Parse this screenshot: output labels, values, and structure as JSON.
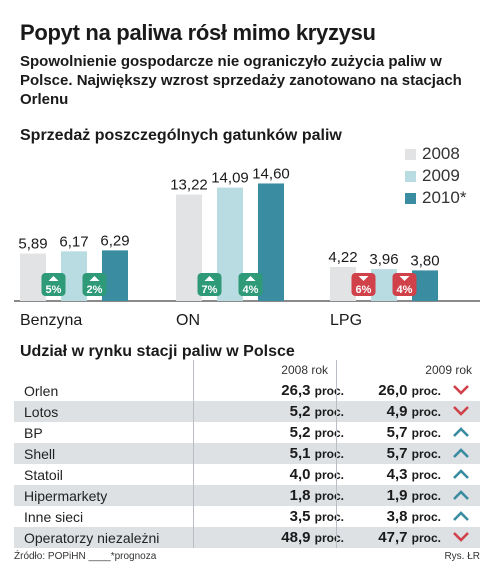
{
  "title": "Popyt na paliwa rósł mimo kryzysu",
  "subtitle": "Spowolnienie gospodarcze nie ograniczyło zużycia paliw w Polsce. Największy wzrost sprzedaży zanotowano na stacjach Orlenu",
  "colors": {
    "y2008": "#e2e3e4",
    "y2009": "#b9dbe2",
    "y2010": "#3a8ca1",
    "up": "#2e9a77",
    "down": "#d0414a",
    "shade": "#dde1e4"
  },
  "chart_data": {
    "type": "bar",
    "title": "Sprzedaż poszczególnych gatunków paliw",
    "categories": [
      "Benzyna",
      "ON",
      "LPG"
    ],
    "series": [
      {
        "name": "2008",
        "values": [
          5.89,
          13.22,
          4.22
        ]
      },
      {
        "name": "2009",
        "values": [
          6.17,
          14.09,
          3.96
        ]
      },
      {
        "name": "2010*",
        "values": [
          6.29,
          14.6,
          3.8
        ]
      }
    ],
    "value_labels": [
      [
        "5,89",
        "6,17",
        "6,29"
      ],
      [
        "13,22",
        "14,09",
        "14,60"
      ],
      [
        "4,22",
        "3,96",
        "3,80"
      ]
    ],
    "changes": [
      [
        {
          "label": "5%",
          "dir": "up"
        },
        {
          "label": "2%",
          "dir": "up"
        }
      ],
      [
        {
          "label": "7%",
          "dir": "up"
        },
        {
          "label": "4%",
          "dir": "up"
        }
      ],
      [
        {
          "label": "6%",
          "dir": "down"
        },
        {
          "label": "4%",
          "dir": "down"
        }
      ]
    ],
    "legend_position": "top-right",
    "grid": false
  },
  "table": {
    "title": "Udział w rynku stacji paliw w Polsce",
    "col_2008": "2008 rok",
    "col_2009": "2009 rok",
    "unit": "proc.",
    "rows": [
      {
        "name": "Orlen",
        "v2008": "26,3",
        "v2009": "26,0",
        "trend": "down"
      },
      {
        "name": "Lotos",
        "v2008": "5,2",
        "v2009": "4,9",
        "trend": "down"
      },
      {
        "name": "BP",
        "v2008": "5,2",
        "v2009": "5,7",
        "trend": "up"
      },
      {
        "name": "Shell",
        "v2008": "5,1",
        "v2009": "5,7",
        "trend": "up"
      },
      {
        "name": "Statoil",
        "v2008": "4,0",
        "v2009": "4,3",
        "trend": "up"
      },
      {
        "name": "Hipermarkety",
        "v2008": "1,8",
        "v2009": "1,9",
        "trend": "up"
      },
      {
        "name": "Inne sieci",
        "v2008": "3,5",
        "v2009": "3,8",
        "trend": "up"
      },
      {
        "name": "Operatorzy niezależni",
        "v2008": "48,9",
        "v2009": "47,7",
        "trend": "down"
      }
    ]
  },
  "footer": {
    "source": "Źródło: POPiHN",
    "note": "____*prognoza",
    "credit": "Rys. ŁR"
  }
}
